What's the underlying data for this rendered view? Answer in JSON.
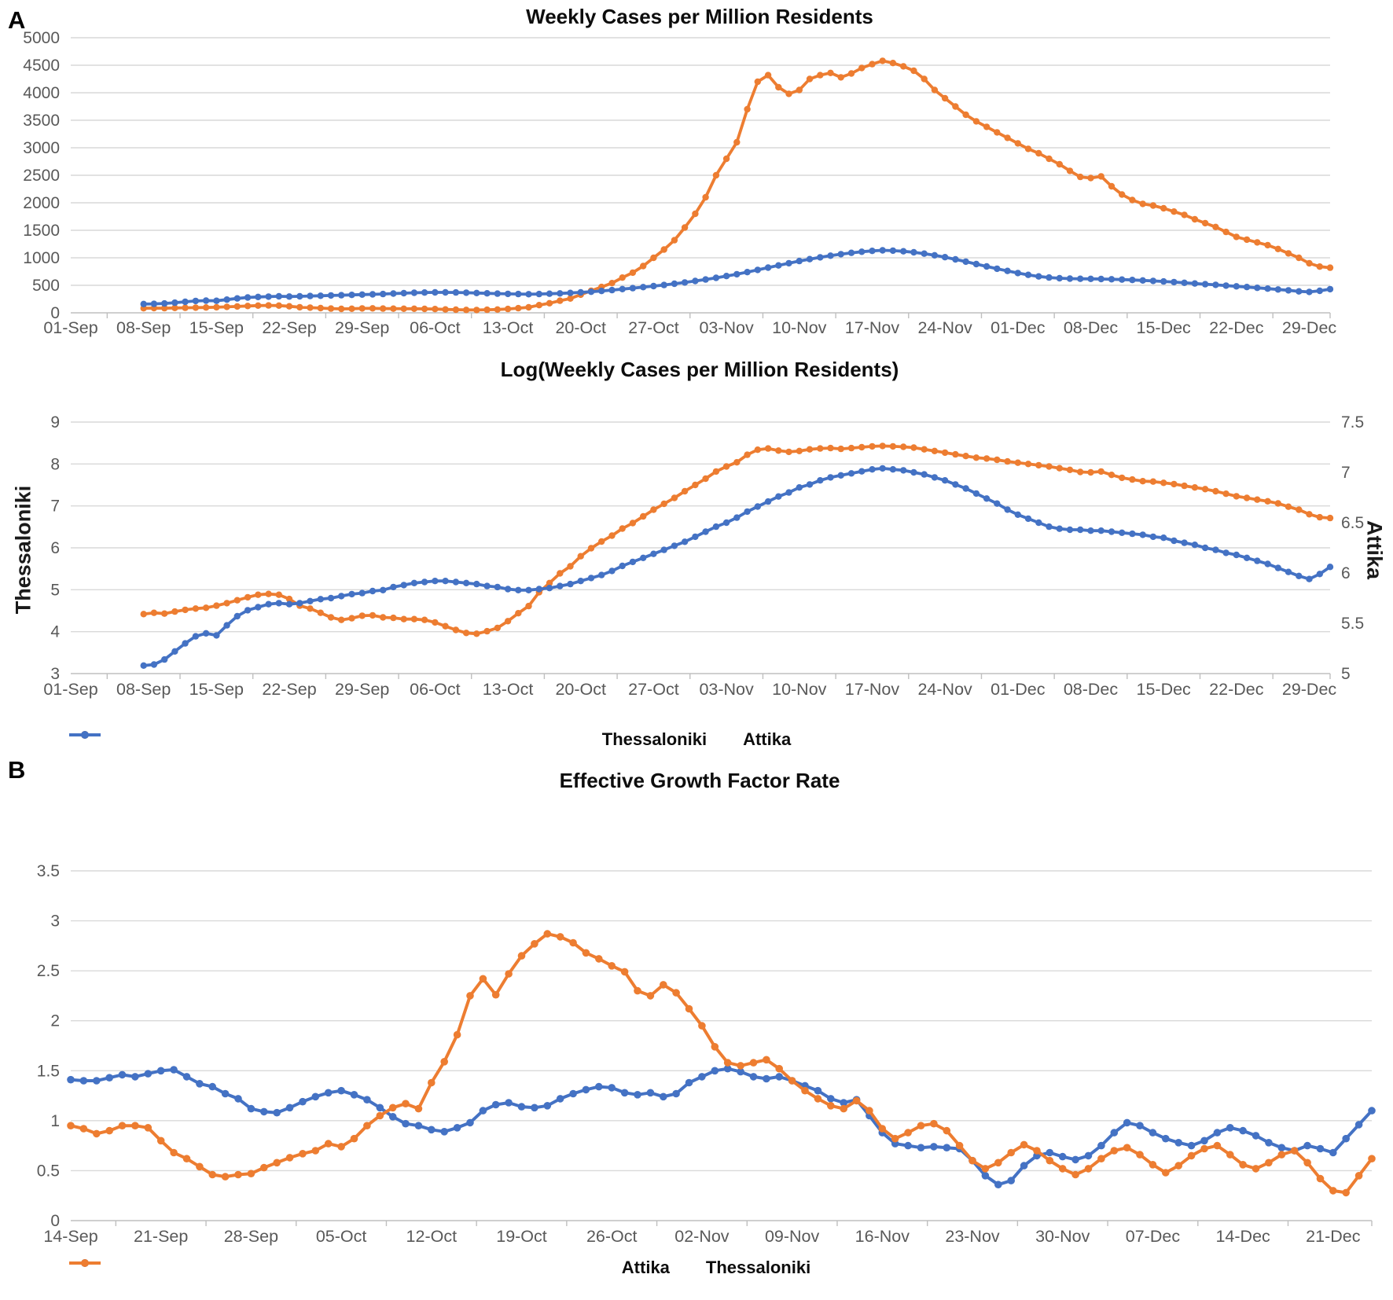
{
  "panels": {
    "a_label": "A",
    "b_label": "B"
  },
  "colors": {
    "thessaloniki": "#ED7D31",
    "attika": "#4472C4",
    "gridline": "#D9D9D9",
    "axis_line": "#BFBFBF",
    "tick_text": "#595959",
    "title_text": "#0d0d0d"
  },
  "chart_data": [
    {
      "type": "line",
      "title": "Weekly Cases per Million Residents",
      "xlabel": "",
      "ylabel": "",
      "x_tick_labels": [
        "01-Sep",
        "08-Sep",
        "15-Sep",
        "22-Sep",
        "29-Sep",
        "06-Oct",
        "13-Oct",
        "20-Oct",
        "27-Oct",
        "03-Nov",
        "10-Nov",
        "17-Nov",
        "24-Nov",
        "01-Dec",
        "08-Dec",
        "15-Dec",
        "22-Dec",
        "29-Dec"
      ],
      "y_tick_labels": [
        "0",
        "500",
        "1000",
        "1500",
        "2000",
        "2500",
        "3000",
        "3500",
        "4000",
        "4500",
        "5000"
      ],
      "ylim": [
        0,
        5000
      ],
      "grid": true,
      "legend_position": "none",
      "start_day_offset": 7,
      "series": [
        {
          "name": "Thessaloniki",
          "color": "#ED7D31",
          "axis": "left",
          "values": [
            83,
            86,
            84,
            88,
            92,
            95,
            97,
            101,
            108,
            116,
            124,
            132,
            134,
            132,
            119,
            101,
            95,
            86,
            77,
            72,
            75,
            80,
            81,
            77,
            76,
            74,
            74,
            72,
            68,
            62,
            57,
            53,
            52,
            55,
            60,
            70,
            85,
            100,
            140,
            175,
            220,
            260,
            330,
            400,
            470,
            540,
            640,
            730,
            850,
            1000,
            1150,
            1320,
            1550,
            1800,
            2100,
            2500,
            2800,
            3100,
            3700,
            4200,
            4320,
            4100,
            3980,
            4050,
            4250,
            4320,
            4360,
            4280,
            4350,
            4450,
            4520,
            4580,
            4540,
            4480,
            4400,
            4250,
            4050,
            3900,
            3750,
            3600,
            3480,
            3380,
            3280,
            3180,
            3080,
            2980,
            2900,
            2800,
            2700,
            2580,
            2470,
            2450,
            2480,
            2300,
            2150,
            2050,
            1980,
            1950,
            1900,
            1840,
            1780,
            1700,
            1630,
            1560,
            1470,
            1380,
            1330,
            1280,
            1230,
            1160,
            1080,
            1000,
            900,
            840,
            820
          ]
        },
        {
          "name": "Attika",
          "color": "#4472C4",
          "axis": "left",
          "values": [
            160,
            163,
            170,
            185,
            200,
            215,
            222,
            218,
            240,
            262,
            278,
            288,
            295,
            300,
            296,
            300,
            305,
            310,
            315,
            320,
            326,
            331,
            336,
            342,
            350,
            357,
            364,
            368,
            371,
            372,
            370,
            366,
            360,
            354,
            349,
            344,
            341,
            339,
            342,
            347,
            353,
            361,
            371,
            383,
            397,
            413,
            431,
            449,
            467,
            486,
            506,
            528,
            552,
            578,
            606,
            636,
            668,
            702,
            740,
            780,
            822,
            862,
            902,
            941,
            976,
            1008,
            1038,
            1066,
            1090,
            1110,
            1126,
            1136,
            1130,
            1118,
            1100,
            1076,
            1046,
            1012,
            972,
            930,
            886,
            843,
            801,
            761,
            723,
            690,
            662,
            641,
            628,
            622,
            619,
            617,
            614,
            610,
            604,
            597,
            589,
            580,
            570,
            558,
            546,
            533,
            520,
            508,
            495,
            482,
            468,
            454,
            440,
            425,
            408,
            390,
            380,
            400,
            430
          ]
        }
      ]
    },
    {
      "type": "line",
      "title": "Log(Weekly Cases per Million Residents)",
      "ylabel_left": "Thessaloniki",
      "ylabel_right": "Attika",
      "x_tick_labels": [
        "01-Sep",
        "08-Sep",
        "15-Sep",
        "22-Sep",
        "29-Sep",
        "06-Oct",
        "13-Oct",
        "20-Oct",
        "27-Oct",
        "03-Nov",
        "10-Nov",
        "17-Nov",
        "24-Nov",
        "01-Dec",
        "08-Dec",
        "15-Dec",
        "22-Dec",
        "29-Dec"
      ],
      "y_tick_labels_left": [
        "3",
        "4",
        "5",
        "6",
        "7",
        "8",
        "9"
      ],
      "y_tick_labels_right": [
        "5",
        "5.5",
        "6",
        "6.5",
        "7",
        "7.5"
      ],
      "ylim_left": [
        3,
        9
      ],
      "ylim_right": [
        5,
        7.5
      ],
      "grid": true,
      "legend_position": "bottom",
      "legend": [
        "Thessaloniki",
        "Attika"
      ],
      "start_day_offset": 7,
      "series": [
        {
          "name": "Thessaloniki",
          "color": "#ED7D31",
          "axis": "left",
          "values": [
            4.42,
            4.45,
            4.43,
            4.48,
            4.52,
            4.55,
            4.57,
            4.62,
            4.68,
            4.75,
            4.82,
            4.88,
            4.9,
            4.88,
            4.78,
            4.62,
            4.55,
            4.45,
            4.34,
            4.28,
            4.32,
            4.38,
            4.39,
            4.34,
            4.33,
            4.3,
            4.3,
            4.28,
            4.22,
            4.13,
            4.04,
            3.97,
            3.95,
            4.01,
            4.09,
            4.25,
            4.44,
            4.61,
            4.94,
            5.16,
            5.39,
            5.56,
            5.8,
            5.99,
            6.15,
            6.29,
            6.46,
            6.59,
            6.75,
            6.91,
            7.05,
            7.19,
            7.35,
            7.5,
            7.65,
            7.82,
            7.94,
            8.04,
            8.22,
            8.34,
            8.37,
            8.32,
            8.29,
            8.31,
            8.35,
            8.37,
            8.38,
            8.36,
            8.38,
            8.4,
            8.42,
            8.43,
            8.42,
            8.41,
            8.39,
            8.35,
            8.31,
            8.27,
            8.23,
            8.19,
            8.15,
            8.13,
            8.1,
            8.06,
            8.03,
            8.0,
            7.97,
            7.94,
            7.9,
            7.86,
            7.81,
            7.8,
            7.82,
            7.74,
            7.67,
            7.63,
            7.59,
            7.58,
            7.55,
            7.52,
            7.48,
            7.44,
            7.4,
            7.35,
            7.29,
            7.23,
            7.19,
            7.15,
            7.11,
            7.06,
            6.98,
            6.91,
            6.8,
            6.73,
            6.71
          ]
        },
        {
          "name": "Attika",
          "color": "#4472C4",
          "axis": "right",
          "values": [
            5.08,
            5.09,
            5.14,
            5.22,
            5.3,
            5.37,
            5.4,
            5.38,
            5.48,
            5.57,
            5.63,
            5.66,
            5.69,
            5.7,
            5.69,
            5.7,
            5.72,
            5.74,
            5.75,
            5.77,
            5.79,
            5.8,
            5.82,
            5.83,
            5.86,
            5.88,
            5.9,
            5.91,
            5.92,
            5.92,
            5.91,
            5.9,
            5.89,
            5.87,
            5.86,
            5.84,
            5.83,
            5.83,
            5.84,
            5.85,
            5.87,
            5.89,
            5.92,
            5.95,
            5.98,
            6.02,
            6.07,
            6.11,
            6.15,
            6.19,
            6.23,
            6.27,
            6.31,
            6.36,
            6.41,
            6.46,
            6.5,
            6.55,
            6.61,
            6.66,
            6.71,
            6.76,
            6.8,
            6.85,
            6.88,
            6.92,
            6.95,
            6.97,
            6.99,
            7.01,
            7.03,
            7.04,
            7.03,
            7.02,
            7.0,
            6.98,
            6.95,
            6.92,
            6.88,
            6.84,
            6.79,
            6.74,
            6.69,
            6.63,
            6.58,
            6.54,
            6.5,
            6.46,
            6.44,
            6.43,
            6.43,
            6.42,
            6.42,
            6.41,
            6.4,
            6.39,
            6.38,
            6.36,
            6.35,
            6.32,
            6.3,
            6.28,
            6.25,
            6.23,
            6.2,
            6.18,
            6.15,
            6.12,
            6.09,
            6.05,
            6.01,
            5.97,
            5.94,
            5.99,
            6.06
          ]
        }
      ]
    },
    {
      "type": "line",
      "title": "Effective Growth Factor Rate",
      "x_tick_labels": [
        "14-Sep",
        "21-Sep",
        "28-Sep",
        "05-Oct",
        "12-Oct",
        "19-Oct",
        "26-Oct",
        "02-Nov",
        "09-Nov",
        "16-Nov",
        "23-Nov",
        "30-Nov",
        "07-Dec",
        "14-Dec",
        "21-Dec"
      ],
      "y_tick_labels": [
        "0",
        "0.5",
        "1",
        "1.5",
        "2",
        "2.5",
        "3",
        "3.5"
      ],
      "ylim": [
        0,
        3.5
      ],
      "grid": true,
      "legend_position": "bottom",
      "legend": [
        "Attika",
        "Thessaloniki"
      ],
      "start_day_offset": 0,
      "series": [
        {
          "name": "Attika",
          "color": "#4472C4",
          "axis": "left",
          "values": [
            1.41,
            1.4,
            1.4,
            1.43,
            1.46,
            1.44,
            1.47,
            1.5,
            1.51,
            1.44,
            1.37,
            1.34,
            1.27,
            1.22,
            1.12,
            1.09,
            1.08,
            1.13,
            1.19,
            1.24,
            1.28,
            1.3,
            1.26,
            1.21,
            1.13,
            1.04,
            0.97,
            0.95,
            0.91,
            0.89,
            0.93,
            0.98,
            1.1,
            1.16,
            1.18,
            1.14,
            1.13,
            1.15,
            1.22,
            1.27,
            1.31,
            1.34,
            1.33,
            1.28,
            1.26,
            1.28,
            1.24,
            1.27,
            1.38,
            1.44,
            1.5,
            1.52,
            1.49,
            1.44,
            1.42,
            1.44,
            1.4,
            1.35,
            1.3,
            1.22,
            1.18,
            1.21,
            1.05,
            0.88,
            0.77,
            0.75,
            0.73,
            0.74,
            0.73,
            0.72,
            0.6,
            0.45,
            0.36,
            0.4,
            0.55,
            0.65,
            0.68,
            0.64,
            0.61,
            0.65,
            0.75,
            0.88,
            0.98,
            0.95,
            0.88,
            0.82,
            0.78,
            0.75,
            0.8,
            0.88,
            0.93,
            0.9,
            0.85,
            0.78,
            0.73,
            0.7,
            0.75,
            0.72,
            0.68,
            0.82,
            0.96,
            1.1
          ]
        },
        {
          "name": "Thessaloniki",
          "color": "#ED7D31",
          "axis": "left",
          "values": [
            0.95,
            0.92,
            0.87,
            0.9,
            0.95,
            0.95,
            0.93,
            0.8,
            0.68,
            0.62,
            0.54,
            0.46,
            0.44,
            0.46,
            0.47,
            0.53,
            0.58,
            0.63,
            0.67,
            0.7,
            0.77,
            0.74,
            0.82,
            0.95,
            1.05,
            1.13,
            1.17,
            1.12,
            1.38,
            1.59,
            1.86,
            2.25,
            2.42,
            2.26,
            2.47,
            2.65,
            2.77,
            2.87,
            2.84,
            2.78,
            2.68,
            2.62,
            2.55,
            2.49,
            2.3,
            2.25,
            2.36,
            2.28,
            2.12,
            1.95,
            1.74,
            1.58,
            1.55,
            1.58,
            1.61,
            1.52,
            1.4,
            1.3,
            1.22,
            1.15,
            1.12,
            1.2,
            1.1,
            0.92,
            0.82,
            0.88,
            0.95,
            0.97,
            0.9,
            0.75,
            0.6,
            0.52,
            0.58,
            0.68,
            0.76,
            0.7,
            0.6,
            0.52,
            0.46,
            0.52,
            0.62,
            0.7,
            0.73,
            0.66,
            0.56,
            0.48,
            0.55,
            0.65,
            0.72,
            0.75,
            0.66,
            0.56,
            0.52,
            0.58,
            0.66,
            0.7,
            0.58,
            0.42,
            0.3,
            0.28,
            0.45,
            0.62
          ]
        }
      ]
    }
  ]
}
